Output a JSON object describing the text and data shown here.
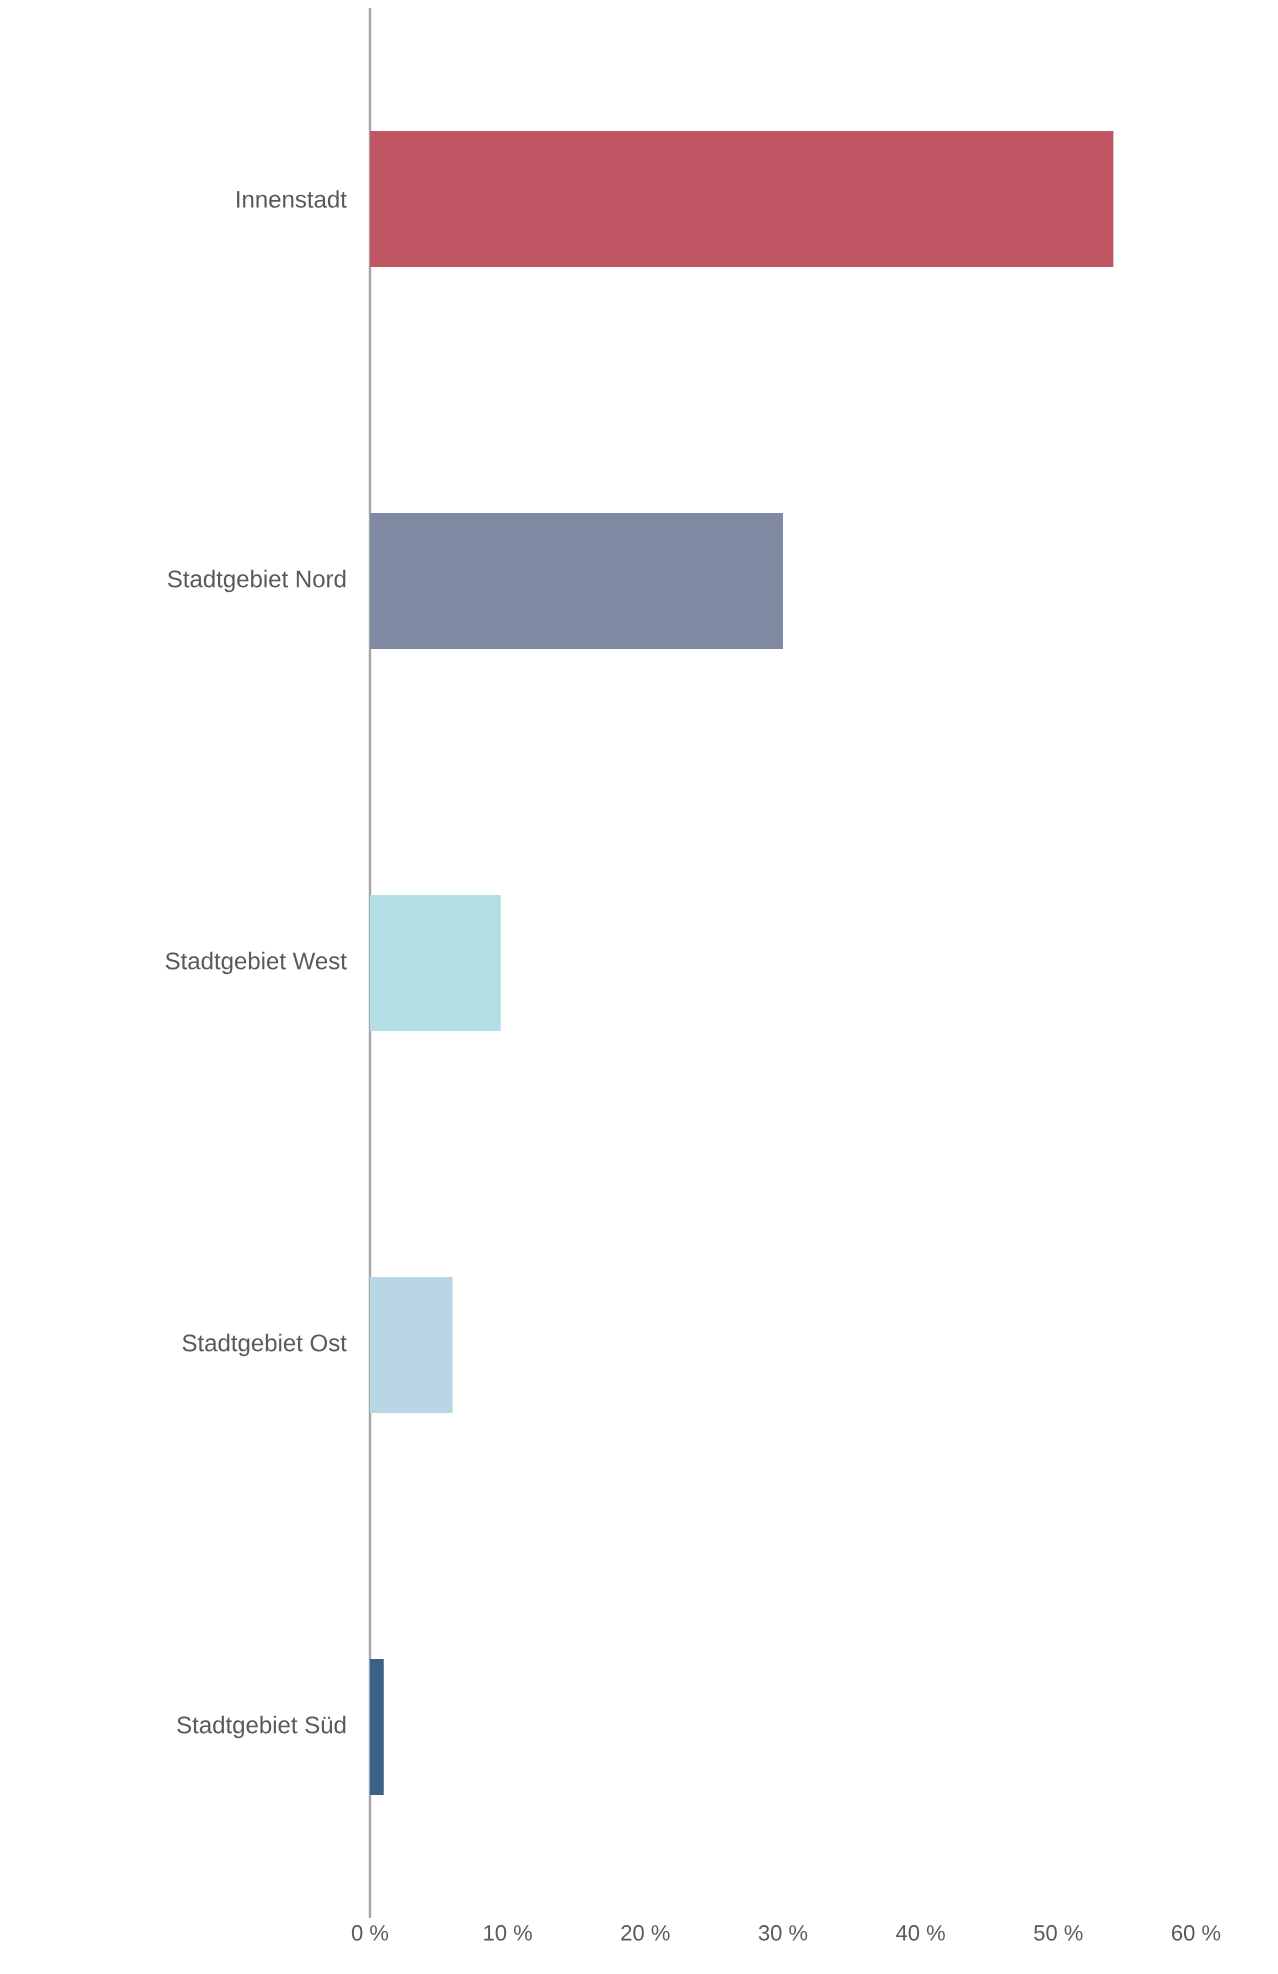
{
  "chart_data": {
    "type": "bar",
    "orientation": "horizontal",
    "categories": [
      "Innenstadt",
      "Stadtgebiet Nord",
      "Stadtgebiet West",
      "Stadtgebiet Ost",
      "Stadtgebiet Süd"
    ],
    "values": [
      54,
      30,
      9.5,
      6,
      1
    ],
    "colors": [
      "#c05563",
      "#7f8aa2",
      "#b3dfe5",
      "#b8d6e3",
      "#3a6186"
    ],
    "xlim": [
      0,
      60
    ],
    "xticks": [
      {
        "value": 0,
        "label": "0 %"
      },
      {
        "value": 10,
        "label": "10 %"
      },
      {
        "value": 20,
        "label": "20 %"
      },
      {
        "value": 30,
        "label": "30 %"
      },
      {
        "value": 40,
        "label": "40 %"
      },
      {
        "value": 50,
        "label": "50 %"
      },
      {
        "value": 60,
        "label": "60 %"
      }
    ]
  }
}
